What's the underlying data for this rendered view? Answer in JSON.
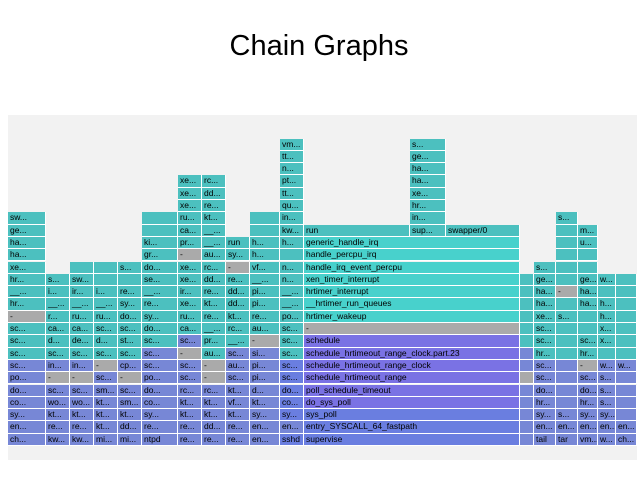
{
  "slide": {
    "title": "Chain Graphs"
  },
  "palette": {
    "cyan": "#48d1cc",
    "teal": "#4cc0bf",
    "aqua": "#5cd3d3",
    "slate": "#7787d6",
    "blue": "#6a7ee0",
    "violet": "#7a72e4",
    "gray": "#aaaaaa",
    "background": "#f2f2f2"
  },
  "flame": {
    "labels": {
      "supervise": "supervise",
      "entry_syscall": "entry_SYSCALL_64_fastpath",
      "sys_poll": "sys_poll",
      "do_sys_poll": "do_sys_poll",
      "poll_schedule_timeout": "poll_schedule_timeout",
      "schedule_hrtimeout_range": "schedule_hrtimeout_range",
      "schedule_hrtimeout_range_clock": "schedule_hrtimeout_range_clock",
      "schedule_hrtimeout_range_clock_part": "schedule_hrtimeout_range_clock.part.23",
      "schedule": "schedule",
      "dash": "-",
      "hrtimer_wakeup": "hrtimer_wakeup",
      "hrtimer_run_queues": "__hrtimer_run_queues",
      "hrtimer_interrupt": "hrtimer_interrupt",
      "xen_timer_interrupt": "xen_timer_interrupt",
      "handle_irq_event_percpu": "handle_irq_event_percpu",
      "handle_percpu_irq": "handle_percpu_irq",
      "generic_handle_irq": "generic_handle_irq",
      "run": "run",
      "swapper": "swapper/0",
      "sup": "sup...",
      "sshd": "sshd",
      "tail": "tail",
      "tar": "tar",
      "vm": "vm...",
      "w": "w...",
      "ch": "ch...",
      "en": "en...",
      "sy": "sy...",
      "do": "do...",
      "po": "po...",
      "sc": "sc...",
      "hr": "hr...",
      "xe": "xe...",
      "ha": "ha...",
      "ge": "ge...",
      "sw": "sw...",
      "kw": "kw...",
      "mi": "mi...",
      "ntpd": "ntpd",
      "re": "re...",
      "kt": "kt...",
      "cp": "cp...",
      "ca": "ca...",
      "in": "in...",
      "i": "i...",
      "pr": "pr...",
      "au": "au...",
      "pi": "pi...",
      "rc": "rc...",
      "dd": "dd...",
      "ir": "ir...",
      "ru": "ru...",
      "gr": "gr...",
      "s": "s...",
      "co": "co...",
      "wo": "wo...",
      "sm": "sm...",
      "st": "st...",
      "vf": "vf...",
      "ki": "ki...",
      "n": "n...",
      "u": "u...",
      "m": "m...",
      "b": "b...",
      "x": "x...",
      "h": "h...",
      "k": "k...",
      "de": "de...",
      "se": "se...",
      "qu": "qu...",
      "pt": "pt...",
      "tt": "tt...",
      "d": "d...",
      "r": "r...",
      "si": "si...",
      "ti": "ti...",
      "u2": "__...",
      "pos": "po..."
    }
  }
}
